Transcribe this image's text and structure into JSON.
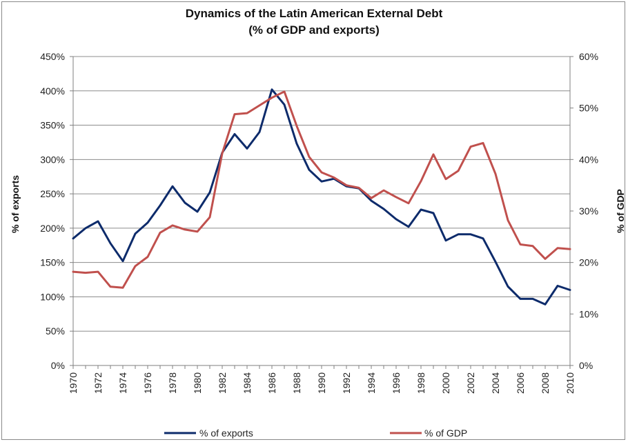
{
  "chart_data": {
    "type": "line",
    "title": "Dynamics of the Latin American External Debt",
    "subtitle": "(% of GDP and exports)",
    "x": [
      1970,
      1971,
      1972,
      1973,
      1974,
      1975,
      1976,
      1977,
      1978,
      1979,
      1980,
      1981,
      1982,
      1983,
      1984,
      1985,
      1986,
      1987,
      1988,
      1989,
      1990,
      1991,
      1992,
      1993,
      1994,
      1995,
      1996,
      1997,
      1998,
      1999,
      2000,
      2001,
      2002,
      2003,
      2004,
      2005,
      2006,
      2007,
      2008,
      2009,
      2010
    ],
    "x_tick_labels": [
      "1970",
      "1972",
      "1974",
      "1976",
      "1978",
      "1980",
      "1982",
      "1984",
      "1986",
      "1988",
      "1990",
      "1992",
      "1994",
      "1996",
      "1998",
      "2000",
      "2002",
      "2004",
      "2006",
      "2008",
      "2010"
    ],
    "ylabel": "% of exports",
    "ylabel_right": "% of GDP",
    "ylim": [
      0,
      450
    ],
    "ylim_right": [
      0,
      60
    ],
    "y_tick_labels": [
      "0%",
      "50%",
      "100%",
      "150%",
      "200%",
      "250%",
      "300%",
      "350%",
      "400%",
      "450%"
    ],
    "y_right_tick_labels": [
      "0%",
      "10%",
      "20%",
      "30%",
      "40%",
      "50%",
      "60%"
    ],
    "grid": "horizontal",
    "legend_position": "bottom",
    "series": [
      {
        "name": "% of exports",
        "axis": "left",
        "color": "#0d2b6b",
        "values": [
          185,
          200,
          210,
          178,
          152,
          192,
          208,
          233,
          261,
          237,
          224,
          252,
          310,
          337,
          316,
          340,
          402,
          380,
          323,
          285,
          268,
          272,
          261,
          258,
          240,
          228,
          213,
          202,
          227,
          222,
          182,
          191,
          191,
          185,
          151,
          115,
          97,
          97,
          89,
          116,
          110
        ]
      },
      {
        "name": "% of GDP",
        "axis": "right",
        "color": "#c0504d",
        "values": [
          18.2,
          18.0,
          18.2,
          15.3,
          15.1,
          19.3,
          21.1,
          25.8,
          27.2,
          26.4,
          26.0,
          28.8,
          41.2,
          48.8,
          49.0,
          50.5,
          52.0,
          53.2,
          46.5,
          40.5,
          37.5,
          36.5,
          35.0,
          34.5,
          32.5,
          34.0,
          32.7,
          31.5,
          35.8,
          41.0,
          36.2,
          37.8,
          42.5,
          43.2,
          37.2,
          28.2,
          23.5,
          23.2,
          20.7,
          22.8,
          22.6
        ]
      }
    ]
  }
}
